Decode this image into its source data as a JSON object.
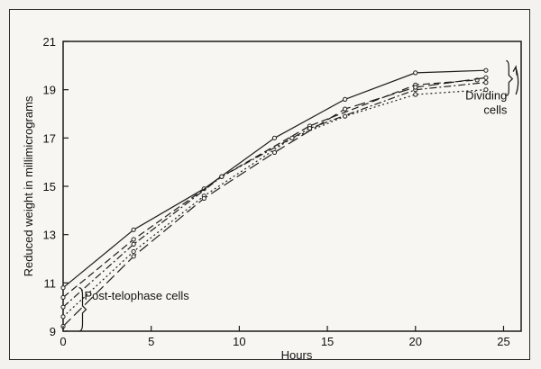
{
  "chart_data": {
    "type": "line",
    "xlabel": "Hours",
    "ylabel": "Reduced weight in millimicrograms",
    "xlim": [
      0,
      26
    ],
    "ylim": [
      9,
      21
    ],
    "xticks": [
      0,
      5,
      10,
      15,
      20,
      25
    ],
    "yticks": [
      9,
      11,
      13,
      15,
      17,
      19,
      21
    ],
    "grid": false,
    "series": [
      {
        "style": "solid",
        "points": [
          [
            0,
            10.8
          ],
          [
            4,
            13.2
          ],
          [
            8,
            14.9
          ],
          [
            12,
            17.0
          ],
          [
            16,
            18.6
          ],
          [
            20,
            19.7
          ],
          [
            24,
            19.8
          ]
        ]
      },
      {
        "style": "dash",
        "points": [
          [
            0,
            10.4
          ],
          [
            4,
            12.8
          ],
          [
            9,
            15.4
          ],
          [
            14,
            17.5
          ],
          [
            20,
            19.2
          ],
          [
            23.5,
            19.4
          ]
        ]
      },
      {
        "style": "dashdot",
        "points": [
          [
            0,
            10.0
          ],
          [
            4,
            12.6
          ],
          [
            9,
            15.4
          ],
          [
            14,
            17.4
          ],
          [
            20,
            19.0
          ],
          [
            24,
            19.3
          ]
        ]
      },
      {
        "style": "dotted",
        "points": [
          [
            0,
            9.6
          ],
          [
            4,
            12.3
          ],
          [
            8,
            14.6
          ],
          [
            13,
            17.0
          ],
          [
            16,
            17.9
          ],
          [
            20,
            18.8
          ],
          [
            24,
            19.0
          ]
        ]
      },
      {
        "style": "longdash",
        "points": [
          [
            0,
            9.2
          ],
          [
            4,
            12.1
          ],
          [
            8,
            14.5
          ],
          [
            12,
            16.4
          ],
          [
            16,
            18.2
          ],
          [
            20,
            19.1
          ],
          [
            24,
            19.5
          ]
        ]
      }
    ],
    "annotations": [
      {
        "text": "Post-telophase cells",
        "x": 1.2,
        "y": 10.3
      },
      {
        "text": "Dividing",
        "x": 25.2,
        "y": 18.6
      },
      {
        "text": "cells",
        "x": 25.2,
        "y": 18.0
      }
    ]
  }
}
